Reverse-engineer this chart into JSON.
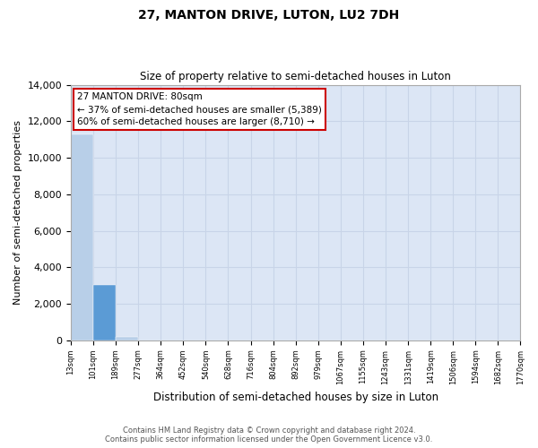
{
  "title": "27, MANTON DRIVE, LUTON, LU2 7DH",
  "subtitle": "Size of property relative to semi-detached houses in Luton",
  "xlabel": "Distribution of semi-detached houses by size in Luton",
  "ylabel": "Number of semi-detached properties",
  "bar_color": "#b8cfe8",
  "highlight_bar_color": "#5b9bd5",
  "highlight_bar_index": 1,
  "bar_values": [
    11300,
    3050,
    200,
    0,
    0,
    0,
    0,
    0,
    0,
    0,
    0,
    0,
    0,
    0,
    0,
    0,
    0,
    0,
    0,
    0
  ],
  "x_labels": [
    "13sqm",
    "101sqm",
    "189sqm",
    "277sqm",
    "364sqm",
    "452sqm",
    "540sqm",
    "628sqm",
    "716sqm",
    "804sqm",
    "892sqm",
    "979sqm",
    "1067sqm",
    "1155sqm",
    "1243sqm",
    "1331sqm",
    "1419sqm",
    "1506sqm",
    "1594sqm",
    "1682sqm",
    "1770sqm"
  ],
  "ylim": [
    0,
    14000
  ],
  "yticks": [
    0,
    2000,
    4000,
    6000,
    8000,
    10000,
    12000,
    14000
  ],
  "annotation_text": "27 MANTON DRIVE: 80sqm\n← 37% of semi-detached houses are smaller (5,389)\n60% of semi-detached houses are larger (8,710) →",
  "annotation_box_color": "#ffffff",
  "annotation_box_edge_color": "#cc0000",
  "grid_color": "#c8d4e8",
  "background_color": "#dce6f5",
  "footer_line1": "Contains HM Land Registry data © Crown copyright and database right 2024.",
  "footer_line2": "Contains public sector information licensed under the Open Government Licence v3.0."
}
